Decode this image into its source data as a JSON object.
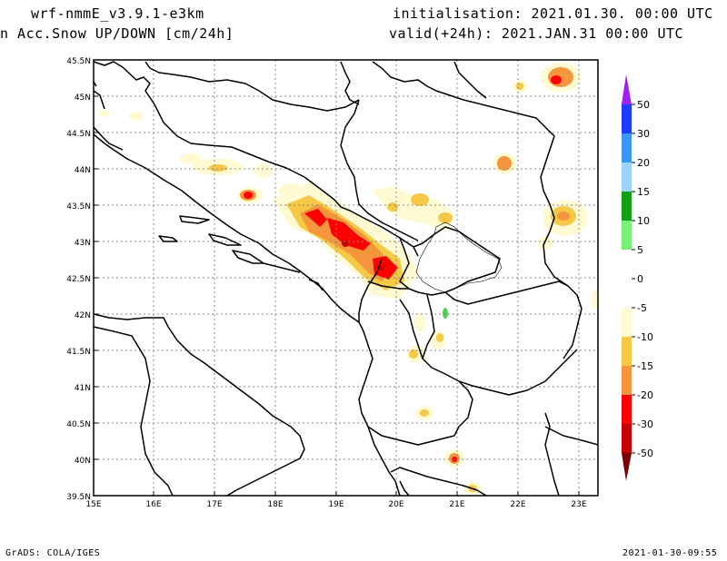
{
  "header": {
    "model": "wrf-nmmE_v3.9.1-e3km",
    "field": "n Acc.Snow UP/DOWN [cm/24h]",
    "init": "initialisation: 2021.01.30.  00:00 UTC",
    "valid": "valid(+24h): 2021.JAN.31 00:00 UTC"
  },
  "footer": {
    "left": "GrADS: COLA/IGES",
    "right": "2021-01-30-09:55"
  },
  "map": {
    "lon_ticks": [
      "15E",
      "16E",
      "17E",
      "18E",
      "19E",
      "20E",
      "21E",
      "22E",
      "23E"
    ],
    "lat_ticks": [
      "45.5N",
      "45N",
      "44.5N",
      "44N",
      "43.5N",
      "43N",
      "42.5N",
      "42N",
      "41.5N",
      "41N",
      "40.5N",
      "40N",
      "39.5N"
    ]
  },
  "colorbar": {
    "labels": [
      "50",
      "30",
      "20",
      "15",
      "10",
      "5",
      "0",
      "-5",
      "-10",
      "-15",
      "-20",
      "-30",
      "-50"
    ],
    "colors": [
      "#1e3cff",
      "#3c96f5",
      "#a0d2ff",
      "#14a014",
      "#78f078",
      "#ffffff",
      "#ffffff",
      "#fffad2",
      "#f5c846",
      "#f5963c",
      "#ff0000",
      "#c80000",
      "#a00000"
    ],
    "top_arrow": "#a020f0",
    "bottom_arrow": "#7d0000"
  }
}
